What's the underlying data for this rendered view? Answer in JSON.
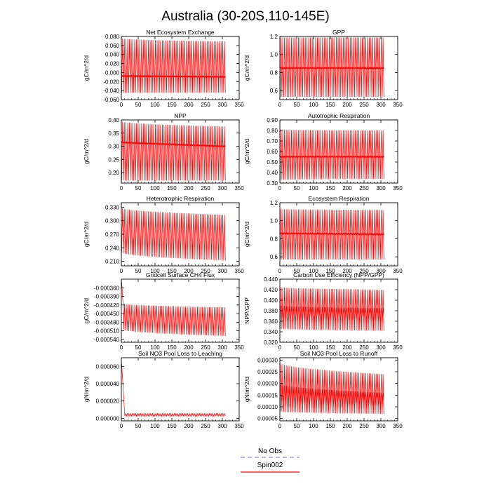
{
  "figure": {
    "title": "Australia (30-20S,110-145E)",
    "colors": {
      "spin": "#ff0000",
      "obs": "#8888ff",
      "axis": "#000000"
    }
  },
  "legend": {
    "entries": [
      {
        "label": "No Obs",
        "style": "dashed",
        "color": "#8888ff"
      },
      {
        "label": "Spin002",
        "style": "solid",
        "color": "#ff0000"
      }
    ]
  },
  "chart_data": [
    {
      "type": "line",
      "title": "Net Ecosystem Exchange",
      "ylabel": "gC/m^2/d",
      "xlim": [
        0,
        350
      ],
      "xticks": [
        "0",
        "50",
        "100",
        "150",
        "200",
        "250",
        "300",
        "350"
      ],
      "ylim": [
        -0.06,
        0.08
      ],
      "yticks": [
        {
          "v": 0.08,
          "label": "0.080"
        },
        {
          "v": 0.06,
          "label": "0.060"
        },
        {
          "v": 0.04,
          "label": "0.040"
        },
        {
          "v": 0.02,
          "label": "0.020"
        },
        {
          "v": 0.0,
          "label": "0.000"
        },
        {
          "v": -0.02,
          "label": "-0.020"
        },
        {
          "v": -0.04,
          "label": "-0.040"
        },
        {
          "v": -0.06,
          "label": "-0.060"
        }
      ],
      "series": [
        {
          "x_range": [
            1,
            309
          ],
          "cycles": 60,
          "bands": [
            {
              "min_start": -0.045,
              "min_end": -0.045,
              "max_start": 0.076,
              "max_end": 0.069
            }
          ],
          "mean_start": -0.008,
          "mean_end": -0.01
        }
      ]
    },
    {
      "type": "line",
      "title": "GPP",
      "ylabel": "gC/m^2/d",
      "xlim": [
        0,
        350
      ],
      "xticks": [
        "0",
        "50",
        "100",
        "150",
        "200",
        "250",
        "300",
        "350"
      ],
      "ylim": [
        0.5,
        1.2
      ],
      "yticks": [
        {
          "v": 0.6,
          "label": "0.6"
        },
        {
          "v": 0.8,
          "label": "0.8"
        },
        {
          "v": 1.0,
          "label": "1.0"
        },
        {
          "v": 1.2,
          "label": "1.2"
        }
      ],
      "series": [
        {
          "x_range": [
            1,
            309
          ],
          "cycles": 60,
          "bands": [
            {
              "min_start": 0.53,
              "min_end": 0.53,
              "max_start": 1.19,
              "max_end": 1.19
            }
          ],
          "mean_start": 0.85,
          "mean_end": 0.85
        }
      ]
    },
    {
      "type": "line",
      "title": "NPP",
      "ylabel": "gC/m^2/d",
      "xlim": [
        0,
        350
      ],
      "xticks": [
        "0",
        "50",
        "100",
        "150",
        "200",
        "250",
        "300",
        "350"
      ],
      "ylim": [
        0.16,
        0.4
      ],
      "yticks": [
        {
          "v": 0.2,
          "label": "0.20"
        },
        {
          "v": 0.25,
          "label": "0.25"
        },
        {
          "v": 0.3,
          "label": "0.30"
        },
        {
          "v": 0.35,
          "label": "0.35"
        },
        {
          "v": 0.4,
          "label": "0.40"
        }
      ],
      "series": [
        {
          "x_range": [
            1,
            309
          ],
          "cycles": 60,
          "bands": [
            {
              "min_start": 0.17,
              "min_end": 0.17,
              "max_start": 0.395,
              "max_end": 0.375
            }
          ],
          "mean_start": 0.315,
          "mean_end": 0.3
        }
      ]
    },
    {
      "type": "line",
      "title": "Autotrophic Respiration",
      "ylabel": "gC/m^2/d",
      "xlim": [
        0,
        350
      ],
      "xticks": [
        "0",
        "50",
        "100",
        "150",
        "200",
        "250",
        "300",
        "350"
      ],
      "ylim": [
        0.3,
        0.9
      ],
      "yticks": [
        {
          "v": 0.3,
          "label": "0.30"
        },
        {
          "v": 0.4,
          "label": "0.40"
        },
        {
          "v": 0.5,
          "label": "0.50"
        },
        {
          "v": 0.6,
          "label": "0.60"
        },
        {
          "v": 0.7,
          "label": "0.70"
        },
        {
          "v": 0.8,
          "label": "0.80"
        },
        {
          "v": 0.9,
          "label": "0.90"
        }
      ],
      "series": [
        {
          "x_range": [
            1,
            309
          ],
          "cycles": 60,
          "bands": [
            {
              "min_start": 0.33,
              "min_end": 0.34,
              "max_start": 0.81,
              "max_end": 0.8
            }
          ],
          "mean_start": 0.55,
          "mean_end": 0.55
        }
      ]
    },
    {
      "type": "line",
      "title": "Heterotrophic Respiration",
      "ylabel": "gC/m^2/d",
      "xlim": [
        0,
        350
      ],
      "xticks": [
        "0",
        "50",
        "100",
        "150",
        "200",
        "250",
        "300",
        "350"
      ],
      "ylim": [
        0.2,
        0.34
      ],
      "yticks": [
        {
          "v": 0.21,
          "label": "0.210"
        },
        {
          "v": 0.24,
          "label": "0.240"
        },
        {
          "v": 0.27,
          "label": "0.270"
        },
        {
          "v": 0.3,
          "label": "0.300"
        },
        {
          "v": 0.33,
          "label": "0.330"
        }
      ],
      "series": [
        {
          "x_range": [
            1,
            309
          ],
          "cycles": 60,
          "bands": [
            {
              "min_start": 0.23,
              "min_end": 0.212,
              "max_start": 0.329,
              "max_end": 0.313
            }
          ]
        }
      ]
    },
    {
      "type": "line",
      "title": "Ecosystem Respiration",
      "ylabel": "gC/m^2/d",
      "xlim": [
        0,
        350
      ],
      "xticks": [
        "0",
        "50",
        "100",
        "150",
        "200",
        "250",
        "300",
        "350"
      ],
      "ylim": [
        0.5,
        1.2
      ],
      "yticks": [
        {
          "v": 0.6,
          "label": "0.6"
        },
        {
          "v": 0.8,
          "label": "0.8"
        },
        {
          "v": 1.0,
          "label": "1.0"
        },
        {
          "v": 1.2,
          "label": "1.2"
        }
      ],
      "series": [
        {
          "x_range": [
            1,
            309
          ],
          "cycles": 60,
          "bands": [
            {
              "min_start": 0.57,
              "min_end": 0.57,
              "max_start": 1.13,
              "max_end": 1.12
            }
          ],
          "mean_start": 0.86,
          "mean_end": 0.85
        }
      ]
    },
    {
      "type": "line",
      "title": "Gridcell Surface CH4 Flux",
      "ylabel": "gC/m^2/d",
      "xlim": [
        0,
        350
      ],
      "xticks": [
        "0",
        "50",
        "100",
        "150",
        "200",
        "250",
        "300",
        "350"
      ],
      "ylim": [
        -0.00055,
        -0.00033
      ],
      "yticks": [
        {
          "v": -0.00036,
          "label": "-0.000360"
        },
        {
          "v": -0.00039,
          "label": "-0.000390"
        },
        {
          "v": -0.00042,
          "label": "-0.000420"
        },
        {
          "v": -0.00045,
          "label": "-0.000450"
        },
        {
          "v": -0.00048,
          "label": "-0.000480"
        },
        {
          "v": -0.00051,
          "label": "-0.000510"
        },
        {
          "v": -0.00054,
          "label": "-0.000540"
        }
      ],
      "series": [
        {
          "x_range": [
            1,
            309
          ],
          "cycles": 60,
          "spike": {
            "x": [
              1,
              7
            ],
            "y": [
              -0.00034,
              -0.00045
            ]
          },
          "bands": [
            {
              "min_start": -0.000505,
              "min_end": -0.000528,
              "max_start": -0.000415,
              "max_end": -0.000428
            }
          ]
        }
      ]
    },
    {
      "type": "line",
      "title": "Carbon Use Efficiency (NPP/GPP)",
      "ylabel": "NPP/GPP",
      "xlim": [
        0,
        350
      ],
      "xticks": [
        "0",
        "50",
        "100",
        "150",
        "200",
        "250",
        "300",
        "350"
      ],
      "ylim": [
        0.32,
        0.44
      ],
      "yticks": [
        {
          "v": 0.32,
          "label": "0.320"
        },
        {
          "v": 0.34,
          "label": "0.340"
        },
        {
          "v": 0.36,
          "label": "0.360"
        },
        {
          "v": 0.38,
          "label": "0.380"
        },
        {
          "v": 0.4,
          "label": "0.400"
        },
        {
          "v": 0.42,
          "label": "0.420"
        },
        {
          "v": 0.44,
          "label": "0.440"
        }
      ],
      "series": [
        {
          "x_range": [
            1,
            309
          ],
          "cycles": 60,
          "bands": [
            {
              "min_start": 0.346,
              "min_end": 0.342,
              "max_start": 0.425,
              "max_end": 0.42
            },
            {
              "min_start": 0.36,
              "min_end": 0.356,
              "max_start": 0.39,
              "max_end": 0.385
            }
          ]
        }
      ]
    },
    {
      "type": "line",
      "title": "Soil NO3 Pool Loss to Leaching",
      "ylabel": "gN/m^2/d",
      "xlim": [
        0,
        350
      ],
      "xticks": [
        "0",
        "50",
        "100",
        "150",
        "200",
        "250",
        "300",
        "350"
      ],
      "ylim": [
        -3e-06,
        7e-05
      ],
      "yticks": [
        {
          "v": 0.0,
          "label": "0.000000"
        },
        {
          "v": 2e-05,
          "label": "0.000020"
        },
        {
          "v": 4e-05,
          "label": "0.000040"
        },
        {
          "v": 6e-05,
          "label": "0.000060"
        }
      ],
      "series": [
        {
          "x_range": [
            1,
            309
          ],
          "cycles": 60,
          "spike": {
            "x": [
              1,
              10
            ],
            "y": [
              6.3e-05,
              4e-06
            ]
          },
          "bands": [
            {
              "min_start": 2.5e-06,
              "min_end": 2.5e-06,
              "max_start": 5.5e-06,
              "max_end": 5.5e-06
            }
          ]
        }
      ]
    },
    {
      "type": "line",
      "title": "Soil NO3 Pool Loss to Runoff",
      "ylabel": "gN/m^2/d",
      "xlim": [
        0,
        350
      ],
      "xticks": [
        "0",
        "50",
        "100",
        "150",
        "200",
        "250",
        "300",
        "350"
      ],
      "ylim": [
        4e-05,
        0.00031
      ],
      "yticks": [
        {
          "v": 5e-05,
          "label": "0.00005"
        },
        {
          "v": 0.0001,
          "label": "0.00010"
        },
        {
          "v": 0.00015,
          "label": "0.00015"
        },
        {
          "v": 0.0002,
          "label": "0.00020"
        },
        {
          "v": 0.00025,
          "label": "0.00025"
        },
        {
          "v": 0.0003,
          "label": "0.00030"
        }
      ],
      "series": [
        {
          "x_range": [
            1,
            309
          ],
          "cycles": 60,
          "bands": [
            {
              "min_start": 8e-05,
              "min_end": 7e-05,
              "max_start": 0.00029,
              "max_end": 0.00024
            },
            {
              "min_start": 0.0001,
              "min_end": 9e-05,
              "max_start": 0.0002,
              "max_end": 0.00016
            }
          ]
        }
      ]
    }
  ]
}
